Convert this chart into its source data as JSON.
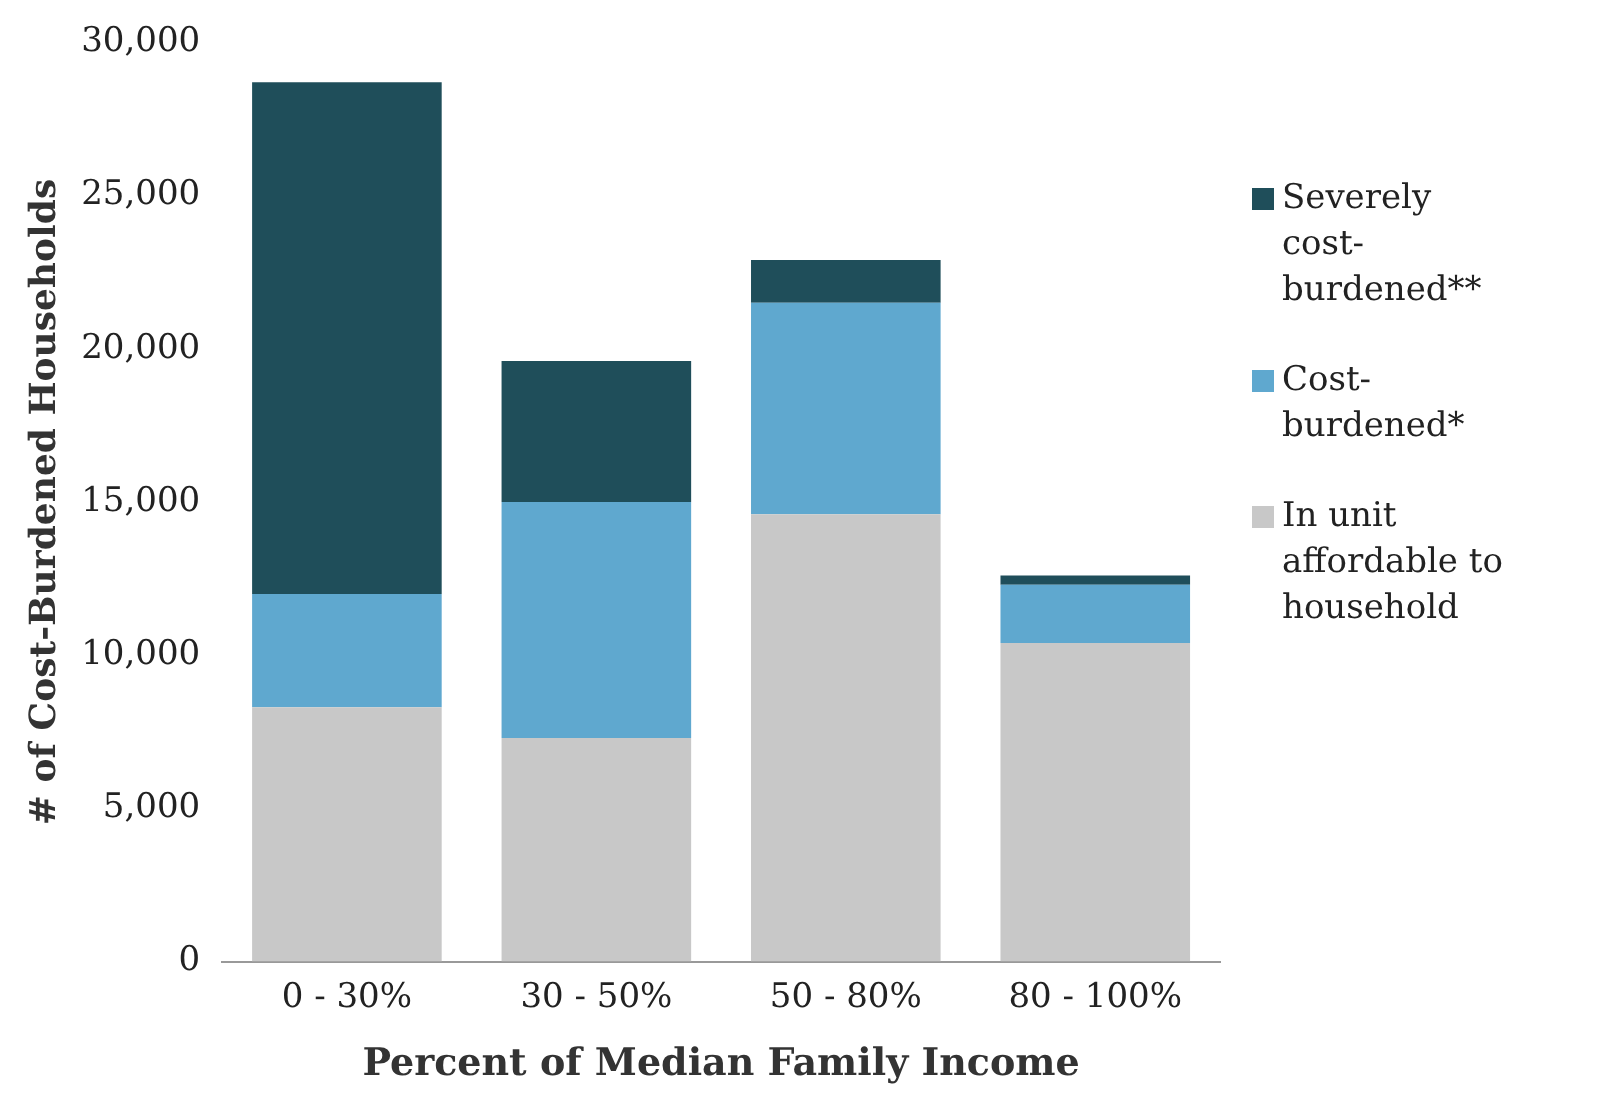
{
  "chart_data": {
    "type": "bar",
    "stacked": true,
    "xlabel": "Percent of Median Family Income",
    "ylabel": "# of Cost-Burdened Households",
    "categories": [
      "0 - 30%",
      "30 - 50%",
      "50 - 80%",
      "80 - 100%"
    ],
    "series": [
      {
        "name": "In unit affordable to household",
        "color": "#c8c8c8",
        "values": [
          8300,
          7300,
          14600,
          10400
        ]
      },
      {
        "name": "Cost-burdened*",
        "color": "#5fa8cf",
        "values": [
          3700,
          7700,
          6900,
          1900
        ]
      },
      {
        "name": "Severely cost-burdened**",
        "color": "#1f4e5a",
        "values": [
          16700,
          4600,
          1400,
          300
        ]
      }
    ],
    "ylim": [
      0,
      30000
    ],
    "yticks": [
      0,
      {
        "value": 5000,
        "label": "5,000"
      },
      {
        "value": 10000,
        "label": "10,000"
      },
      {
        "value": 15000,
        "label": "15,000"
      },
      {
        "value": 20000,
        "label": "20,000"
      },
      {
        "value": 25000,
        "label": "25,000"
      },
      {
        "value": 30000,
        "label": "30,000"
      }
    ],
    "grid": false,
    "legend": "right"
  }
}
